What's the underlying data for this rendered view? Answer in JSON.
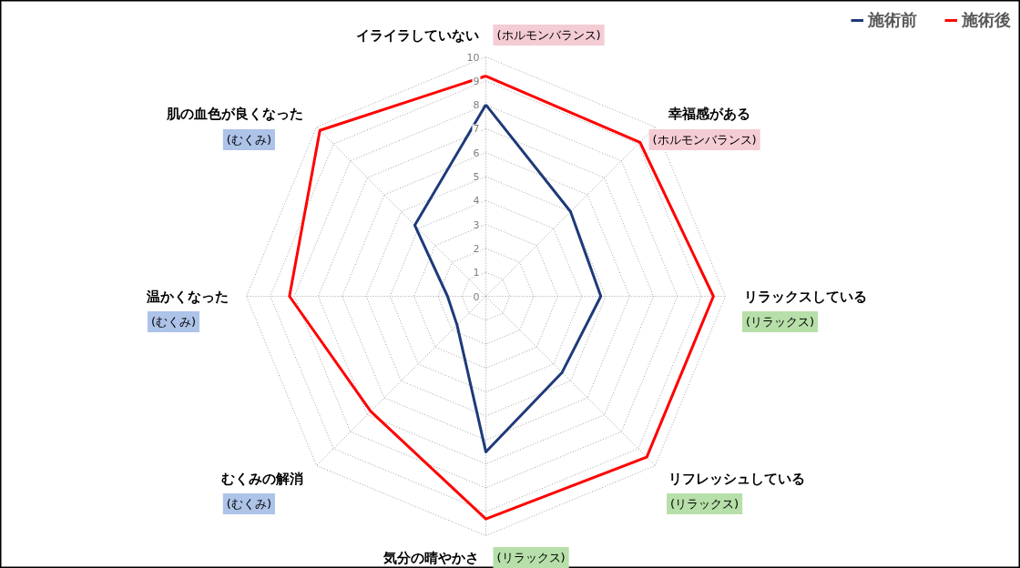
{
  "chart_data": {
    "type": "radar",
    "categories": [
      "イライラしていない",
      "幸福感がある",
      "リラックスしている",
      "リフレッシュしている",
      "気分の晴やかさ",
      "むくみの解消",
      "温かくなった",
      "肌の血色が良くなった"
    ],
    "series": [
      {
        "name": "施術前",
        "color": "#1f3a7a",
        "values": [
          8,
          5,
          4.8,
          4.5,
          6.5,
          1.7,
          1.6,
          4.2
        ]
      },
      {
        "name": "施術後",
        "color": "#ff0000",
        "values": [
          9.2,
          9.1,
          9.5,
          9.5,
          9.3,
          6.8,
          8.2,
          9.8
        ]
      }
    ],
    "ylim": [
      0,
      10
    ],
    "yticks": [
      0,
      1,
      2,
      3,
      4,
      5,
      6,
      7,
      8,
      9,
      10
    ],
    "grid": true,
    "legend": "top right",
    "annotations": [
      {
        "text": "(ホルモンバランス)",
        "x": "イライラしていない"
      },
      {
        "text": "(ホルモンバランス)",
        "x": "幸福感がある"
      },
      {
        "text": "(リラックス)",
        "x": "リラックスしている"
      },
      {
        "text": "(リラックス)",
        "x": "リフレッシュしている"
      },
      {
        "text": "(リラックス)",
        "x": "気分の晴やかさ"
      },
      {
        "text": "(むくみ)",
        "x": "むくみの解消"
      },
      {
        "text": "(むくみ)",
        "x": "温かくなった"
      },
      {
        "text": "(むくみ)",
        "x": "肌の血色が良くなった"
      }
    ]
  }
}
